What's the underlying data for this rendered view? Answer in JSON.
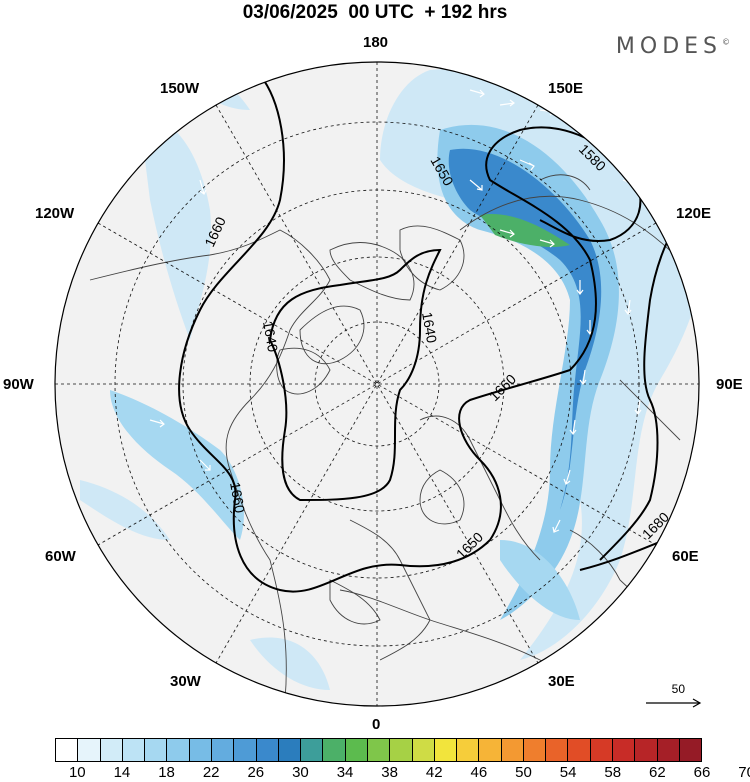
{
  "title": "03/06/2025  00 UTC  + 192 hrs",
  "brand": "MODES",
  "brand_mark": "©",
  "longitude_labels": {
    "top": "180",
    "bottom": "0",
    "left": "90W",
    "right": "90E",
    "nw1": "150W",
    "nw2": "120W",
    "sw1": "60W",
    "sw2": "30W",
    "ne1": "150E",
    "ne2": "120E",
    "se1": "60E",
    "se2": "30E"
  },
  "reference_vector": "50",
  "contour_labels": [
    "1580",
    "1650",
    "1660",
    "1640",
    "1640",
    "1660",
    "1650",
    "1660",
    "1680"
  ],
  "legend": {
    "ticks": [
      "10",
      "14",
      "18",
      "22",
      "26",
      "30",
      "34",
      "38",
      "42",
      "46",
      "50",
      "54",
      "58",
      "62",
      "66",
      "70"
    ],
    "colors": [
      "#ffffff",
      "#e6f4fb",
      "#d2ecf8",
      "#bde3f5",
      "#a6d8f1",
      "#8ecbec",
      "#77bce6",
      "#63acdf",
      "#4e9bd6",
      "#3a89cc",
      "#2b7dbd",
      "#3d9e9a",
      "#4cb068",
      "#5cbb4e",
      "#7fc64a",
      "#a6d145",
      "#cfdc45",
      "#f2e43c",
      "#f6cd3a",
      "#f6b437",
      "#f39932",
      "#ef7e2d",
      "#e96329",
      "#e14d26",
      "#d63a26",
      "#c82c27",
      "#b72527",
      "#a51f27",
      "#951b26"
    ]
  },
  "colors": {
    "land": "#f2f2f2",
    "jet_light": "#cfe8f6",
    "jet_mid": "#8ecbec",
    "jet_strong": "#3a89cc",
    "jet_max": "#4cb068"
  }
}
